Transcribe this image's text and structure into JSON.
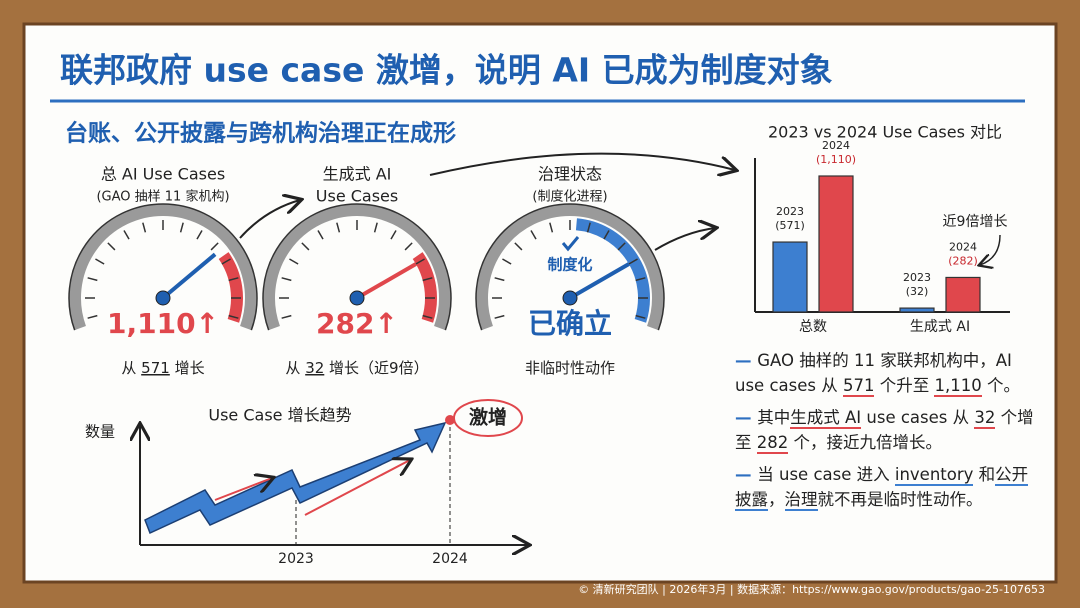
{
  "header": {
    "title": "联邦政府 use case 激增，说明 AI 已成为制度对象",
    "subtitle": "台账、公开披露与跨机构治理正在成形"
  },
  "gauges": [
    {
      "title": [
        "总 AI Use Cases",
        "(GAO 抽样 11 家机构)"
      ],
      "value": "1,110↑",
      "note": [
        "从 ",
        "571",
        " 增长"
      ]
    },
    {
      "title": [
        "生成式 AI",
        "Use Cases"
      ],
      "value": "282↑",
      "note": [
        "从 ",
        "32",
        " 增长（近9倍）"
      ]
    },
    {
      "title": [
        "治理状态",
        "(制度化进程)"
      ],
      "badge": "制度化",
      "value": "已确立",
      "note": [
        "非临时性动作"
      ]
    }
  ],
  "trend": {
    "title": "Use Case 增长趋势",
    "y_label": "数量",
    "x_labels": [
      "2023",
      "2024"
    ],
    "annotation": "激增"
  },
  "chart_data": {
    "type": "bar",
    "title": "2023 vs 2024 Use Cases 对比",
    "categories": [
      "总数",
      "生成式 AI"
    ],
    "series": [
      {
        "name": "2023",
        "color": "#3d7fd0",
        "values": [
          571,
          32
        ],
        "value_labels": [
          "(571)",
          "(32)"
        ]
      },
      {
        "name": "2024",
        "color": "#e0474c",
        "values": [
          1110,
          282
        ],
        "value_labels": [
          "(1,110)",
          "(282)"
        ]
      }
    ],
    "annotation": "近9倍增长"
  },
  "bullets": [
    [
      "GAO 抽样的 11 家联邦机构中，AI use cases 从 ",
      "571",
      " 个升至 ",
      "1,110",
      " 个。"
    ],
    [
      "其中",
      "生成式 AI",
      " use cases 从 ",
      "32",
      " 个增至 ",
      "282",
      " 个，接近九倍增长。"
    ],
    [
      "当 use case 进入 ",
      "inventory",
      " 和",
      "公开披露",
      "，",
      "治理",
      "就不再是临时性动作。"
    ]
  ],
  "footer": "© 清新研究团队 | 2026年3月 | 数据来源：https://www.gao.gov/products/gao-25-107653"
}
